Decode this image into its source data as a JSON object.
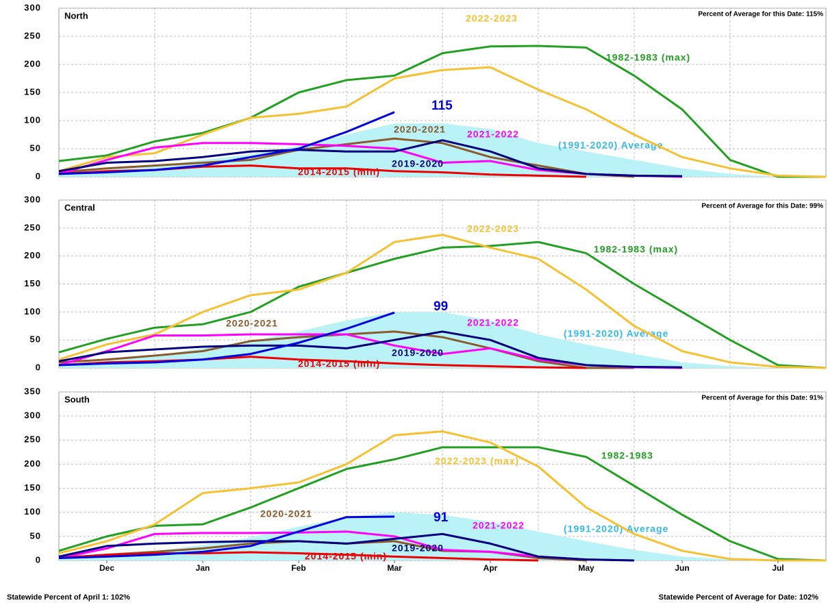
{
  "chart_data": [
    {
      "type": "line",
      "title": "North",
      "subtitle": "Percent of Average for this Date: 115%",
      "x": [
        0,
        0.5,
        1,
        1.5,
        2,
        2.5,
        3,
        3.5,
        4,
        4.5,
        5,
        5.5,
        6,
        6.5,
        7,
        7.5,
        8
      ],
      "xlim": [
        0,
        8
      ],
      "ylim": [
        0,
        300
      ],
      "yticks": [
        0,
        50,
        100,
        150,
        200,
        250,
        300
      ],
      "grid": true,
      "series": [
        {
          "name": "(1991-2020) Average",
          "color": "#b9f3f7",
          "fill": true,
          "values": [
            5,
            12,
            20,
            30,
            40,
            55,
            75,
            95,
            95,
            85,
            60,
            45,
            30,
            15,
            5,
            0,
            0
          ]
        },
        {
          "name": "1982-1983 (max)",
          "color": "#22a022",
          "values": [
            28,
            38,
            63,
            78,
            105,
            150,
            172,
            180,
            220,
            232,
            233,
            230,
            180,
            120,
            30,
            0,
            0
          ]
        },
        {
          "name": "2022-2023",
          "color": "#f5c131",
          "values": [
            10,
            35,
            42,
            75,
            105,
            112,
            125,
            175,
            190,
            195,
            155,
            120,
            75,
            35,
            15,
            2,
            0
          ]
        },
        {
          "name": "2020-2021",
          "color": "#8b5a2b",
          "values": [
            8,
            15,
            20,
            25,
            30,
            48,
            58,
            68,
            60,
            35,
            20,
            5,
            0,
            null,
            null,
            null,
            null
          ]
        },
        {
          "name": "2021-2022",
          "color": "#ff00ff",
          "values": [
            5,
            30,
            52,
            60,
            60,
            58,
            55,
            50,
            25,
            28,
            12,
            5,
            2,
            0,
            null,
            null,
            null
          ]
        },
        {
          "name": "2019-2020",
          "color": "#000080",
          "values": [
            10,
            25,
            28,
            35,
            45,
            48,
            45,
            45,
            65,
            45,
            15,
            5,
            2,
            1,
            null,
            null,
            null
          ]
        },
        {
          "name": "2014-2015 (min)",
          "color": "#ee0000",
          "values": [
            5,
            10,
            12,
            18,
            20,
            15,
            15,
            10,
            8,
            4,
            2,
            0,
            null,
            null,
            null,
            null,
            null
          ]
        },
        {
          "color": "#0000e0",
          "values": [
            5,
            8,
            12,
            20,
            35,
            50,
            80,
            115,
            null,
            null,
            null,
            null,
            null,
            null,
            null,
            null,
            null
          ]
        }
      ]
    },
    {
      "type": "line",
      "title": "Central",
      "subtitle": "Percent of Average for this Date: 99%",
      "x": [
        0,
        0.5,
        1,
        1.5,
        2,
        2.5,
        3,
        3.5,
        4,
        4.5,
        5,
        5.5,
        6,
        6.5,
        7,
        7.5,
        8
      ],
      "xlim": [
        0,
        8
      ],
      "ylim": [
        0,
        300
      ],
      "yticks": [
        0,
        50,
        100,
        150,
        200,
        250,
        300
      ],
      "grid": true,
      "series": [
        {
          "name": "(1991-2020) Average",
          "color": "#b9f3f7",
          "fill": true,
          "values": [
            5,
            12,
            22,
            35,
            48,
            65,
            85,
            100,
            100,
            85,
            60,
            42,
            25,
            10,
            3,
            0,
            0
          ]
        },
        {
          "name": "1982-1983 (max)",
          "color": "#22a022",
          "values": [
            28,
            52,
            72,
            78,
            100,
            145,
            170,
            195,
            215,
            218,
            225,
            205,
            150,
            100,
            50,
            5,
            0
          ]
        },
        {
          "name": "2022-2023",
          "color": "#f5c131",
          "values": [
            15,
            42,
            60,
            100,
            130,
            140,
            170,
            225,
            238,
            215,
            195,
            140,
            75,
            30,
            10,
            2,
            0
          ]
        },
        {
          "name": "2020-2021",
          "color": "#8b5a2b",
          "values": [
            10,
            15,
            22,
            30,
            48,
            55,
            60,
            65,
            55,
            35,
            12,
            0,
            0,
            null,
            null,
            null,
            null
          ]
        },
        {
          "name": "2021-2022",
          "color": "#ff00ff",
          "values": [
            5,
            30,
            58,
            58,
            60,
            60,
            60,
            40,
            25,
            35,
            15,
            5,
            1,
            0,
            null,
            null,
            null
          ]
        },
        {
          "name": "2019-2020",
          "color": "#000080",
          "values": [
            12,
            28,
            33,
            38,
            40,
            40,
            35,
            50,
            65,
            50,
            18,
            5,
            2,
            1,
            null,
            null,
            null
          ]
        },
        {
          "name": "2014-2015 (min)",
          "color": "#ee0000",
          "values": [
            5,
            10,
            12,
            15,
            20,
            15,
            12,
            8,
            5,
            3,
            1,
            0,
            null,
            null,
            null,
            null,
            null
          ]
        },
        {
          "color": "#0000e0",
          "values": [
            5,
            8,
            10,
            15,
            25,
            45,
            70,
            99,
            null,
            null,
            null,
            null,
            null,
            null,
            null,
            null,
            null
          ]
        }
      ]
    },
    {
      "type": "line",
      "title": "South",
      "subtitle": "Percent of Average for this Date: 91%",
      "x": [
        0,
        0.5,
        1,
        1.5,
        2,
        2.5,
        3,
        3.5,
        4,
        4.5,
        5,
        5.5,
        6,
        6.5,
        7,
        7.5,
        8
      ],
      "xlim": [
        0,
        8
      ],
      "ylim": [
        0,
        350
      ],
      "yticks": [
        0,
        50,
        100,
        150,
        200,
        250,
        300,
        350
      ],
      "grid": true,
      "xticks": [
        {
          "value": 0.5,
          "label": "Dec"
        },
        {
          "value": 1.5,
          "label": "Jan"
        },
        {
          "value": 2.5,
          "label": "Feb"
        },
        {
          "value": 3.5,
          "label": "Mar"
        },
        {
          "value": 4.5,
          "label": "Apr"
        },
        {
          "value": 5.5,
          "label": "May"
        },
        {
          "value": 6.5,
          "label": "Jun"
        },
        {
          "value": 7.5,
          "label": "Jul"
        }
      ],
      "series": [
        {
          "name": "(1991-2020) Average",
          "color": "#b9f3f7",
          "fill": true,
          "values": [
            5,
            12,
            20,
            32,
            48,
            70,
            90,
            100,
            95,
            80,
            60,
            40,
            22,
            8,
            2,
            0,
            0
          ]
        },
        {
          "name": "1982-1983",
          "color": "#22a022",
          "values": [
            20,
            50,
            72,
            75,
            110,
            150,
            190,
            210,
            235,
            235,
            235,
            215,
            155,
            95,
            40,
            3,
            0
          ]
        },
        {
          "name": "2022-2023 (max)",
          "color": "#f5c131",
          "values": [
            15,
            40,
            75,
            140,
            150,
            162,
            200,
            260,
            268,
            245,
            195,
            110,
            55,
            20,
            3,
            0,
            0
          ]
        },
        {
          "name": "2020-2021",
          "color": "#8b5a2b",
          "values": [
            5,
            12,
            18,
            25,
            35,
            40,
            35,
            40,
            20,
            18,
            5,
            0,
            null,
            null,
            null,
            null,
            null
          ]
        },
        {
          "name": "2021-2022",
          "color": "#ff00ff",
          "values": [
            5,
            25,
            55,
            57,
            57,
            58,
            60,
            50,
            22,
            18,
            8,
            2,
            0,
            null,
            null,
            null,
            null
          ]
        },
        {
          "name": "2019-2020",
          "color": "#000080",
          "values": [
            8,
            30,
            35,
            38,
            40,
            40,
            35,
            45,
            55,
            35,
            8,
            2,
            0,
            null,
            null,
            null,
            null
          ]
        },
        {
          "name": "2014-2015 (min)",
          "color": "#ee0000",
          "values": [
            5,
            12,
            15,
            15,
            17,
            15,
            12,
            8,
            5,
            2,
            0,
            null,
            null,
            null,
            null,
            null,
            null
          ]
        },
        {
          "color": "#0000e0",
          "values": [
            5,
            8,
            12,
            18,
            30,
            60,
            90,
            91,
            null,
            null,
            null,
            null,
            null,
            null,
            null,
            null,
            null
          ]
        }
      ]
    }
  ],
  "footer": {
    "left": "Statewide Percent of April 1: 102%",
    "right": "Statewide Percent of Average for Date: 102%"
  }
}
